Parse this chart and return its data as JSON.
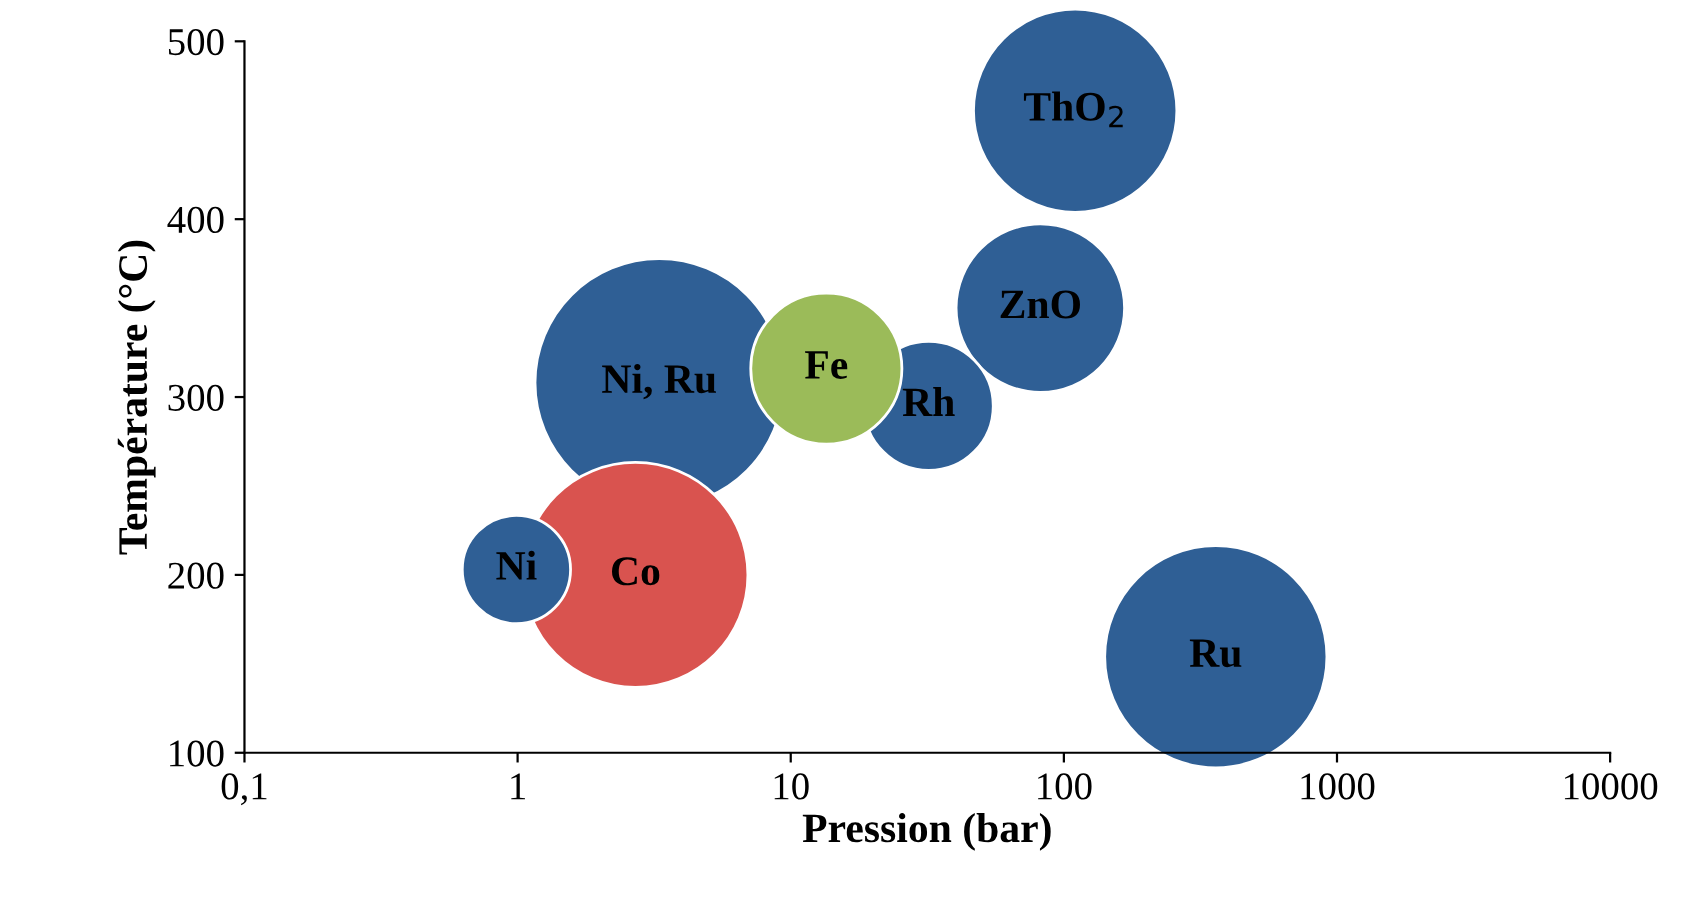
{
  "chart_data": {
    "type": "bubble",
    "xlabel": "Pression (bar)",
    "ylabel": "Température (°C)",
    "log": "x",
    "xlim": [
      0.1,
      10000
    ],
    "xticks": [
      {
        "value": 0.1,
        "label": "0,1"
      },
      1,
      10,
      100,
      1000,
      10000
    ],
    "ylim": [
      100,
      500
    ],
    "yticks": [
      100,
      200,
      300,
      400,
      500
    ],
    "series": [
      {
        "name": "ThO$_{2}$",
        "color": "#2f5f95",
        "x": [
          110
        ],
        "values": [
          461
        ],
        "sizes": [
          0.67
        ]
      },
      {
        "name": "ZnO",
        "color": "#2f5f95",
        "x": [
          82
        ],
        "values": [
          350
        ],
        "sizes": [
          0.46
        ]
      },
      {
        "name": "Rh",
        "color": "#2f5f95",
        "x": [
          32
        ],
        "values": [
          295
        ],
        "sizes": [
          0.27
        ]
      },
      {
        "name": "Ni, Ru",
        "color": "#2f5f95",
        "x": [
          3.3
        ],
        "values": [
          308
        ],
        "sizes": [
          1
        ]
      },
      {
        "name": "Fe",
        "color": "#9bbb59",
        "x": [
          13.5
        ],
        "values": [
          316
        ],
        "sizes": [
          0.37
        ]
      },
      {
        "name": "Co",
        "color": "#d9534f",
        "x": [
          2.7
        ],
        "values": [
          200
        ],
        "sizes": [
          0.82
        ]
      },
      {
        "name": "Ni",
        "color": "#2f5f95",
        "x": [
          0.99
        ],
        "values": [
          203
        ],
        "sizes": [
          0.19
        ]
      },
      {
        "name": "Ru",
        "color": "#2f5f95",
        "x": [
          360
        ],
        "values": [
          154
        ],
        "sizes": [
          0.8
        ]
      }
    ]
  }
}
